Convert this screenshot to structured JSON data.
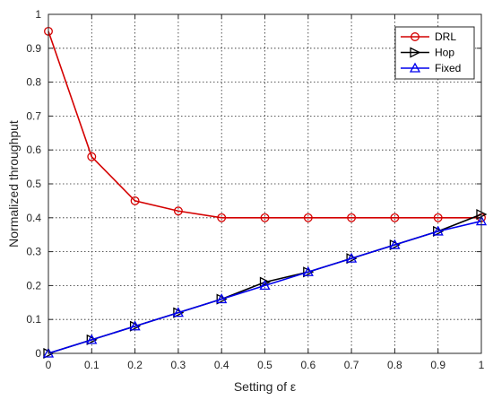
{
  "chart_data": {
    "type": "line",
    "xlabel": "Setting of ε",
    "ylabel": "Normalized throughput",
    "xlim": [
      0,
      1
    ],
    "ylim": [
      0,
      1
    ],
    "x_ticks": [
      "0",
      "0.1",
      "0.2",
      "0.3",
      "0.4",
      "0.5",
      "0.6",
      "0.7",
      "0.8",
      "0.9",
      "1"
    ],
    "y_ticks": [
      "0",
      "0.1",
      "0.2",
      "0.3",
      "0.4",
      "0.5",
      "0.6",
      "0.7",
      "0.8",
      "0.9",
      "1"
    ],
    "grid": true,
    "legend_position": "top-right",
    "x": [
      0,
      0.1,
      0.2,
      0.3,
      0.4,
      0.5,
      0.6,
      0.7,
      0.8,
      0.9,
      1.0
    ],
    "series": [
      {
        "name": "DRL",
        "marker": "circle",
        "color": "#d40000",
        "values": [
          0.95,
          0.58,
          0.45,
          0.42,
          0.4,
          0.4,
          0.4,
          0.4,
          0.4,
          0.4,
          0.4
        ]
      },
      {
        "name": "Hop",
        "marker": "triangle-right",
        "color": "#000000",
        "values": [
          0.0,
          0.04,
          0.08,
          0.12,
          0.16,
          0.21,
          0.24,
          0.28,
          0.32,
          0.36,
          0.41
        ]
      },
      {
        "name": "Fixed",
        "marker": "triangle-up",
        "color": "#0000ee",
        "values": [
          0.0,
          0.04,
          0.08,
          0.12,
          0.16,
          0.2,
          0.24,
          0.28,
          0.32,
          0.36,
          0.39
        ]
      }
    ]
  }
}
